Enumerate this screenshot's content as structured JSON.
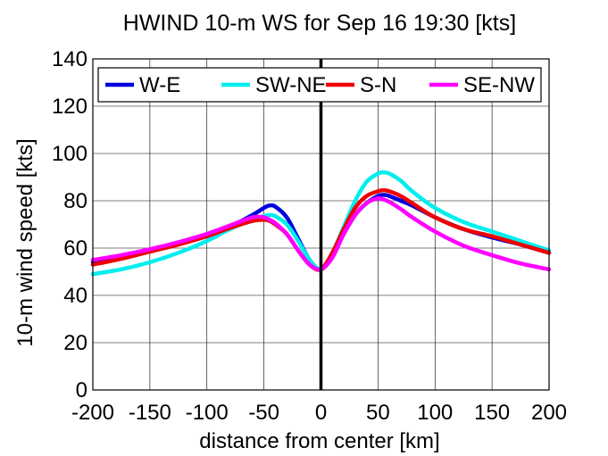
{
  "chart_data": {
    "type": "line",
    "title": "HWIND 10-m WS for Sep 16 19:30 [kts]",
    "xlabel": "distance from center [km]",
    "ylabel": "10-m wind speed [kts]",
    "xlim": [
      -200,
      200
    ],
    "ylim": [
      0,
      140
    ],
    "xticks": [
      -200,
      -150,
      -100,
      -50,
      0,
      50,
      100,
      150,
      200
    ],
    "yticks": [
      0,
      20,
      40,
      60,
      80,
      100,
      120,
      140
    ],
    "grid": true,
    "legend_position": "top",
    "center_line_x": 0,
    "series": [
      {
        "name": "W-E",
        "color": "#0000dd",
        "x": [
          -200,
          -175,
          -150,
          -125,
          -100,
          -80,
          -60,
          -50,
          -45,
          -40,
          -30,
          -20,
          -10,
          0,
          10,
          20,
          30,
          40,
          50,
          55,
          60,
          70,
          80,
          100,
          125,
          150,
          175,
          200
        ],
        "y": [
          54,
          56,
          59,
          62,
          65,
          69,
          74,
          77,
          78,
          77.5,
          73,
          64,
          55,
          51,
          57,
          66,
          74,
          79,
          82,
          82.5,
          82,
          80,
          78,
          73,
          68,
          64.5,
          61.5,
          58
        ]
      },
      {
        "name": "SW-NE",
        "color": "#00eeee",
        "x": [
          -200,
          -175,
          -150,
          -125,
          -100,
          -80,
          -60,
          -50,
          -45,
          -40,
          -30,
          -20,
          -10,
          0,
          10,
          20,
          30,
          40,
          50,
          55,
          60,
          70,
          80,
          100,
          125,
          150,
          175,
          200
        ],
        "y": [
          49,
          51,
          54,
          58,
          63,
          68,
          72,
          73.5,
          74,
          73.5,
          70,
          63,
          55,
          51,
          58,
          69,
          80,
          88,
          91.5,
          92,
          91.5,
          88.5,
          84,
          77,
          71,
          67,
          63,
          59
        ]
      },
      {
        "name": "S-N",
        "color": "#ee0000",
        "x": [
          -200,
          -175,
          -150,
          -125,
          -100,
          -80,
          -60,
          -50,
          -45,
          -40,
          -30,
          -20,
          -10,
          0,
          10,
          20,
          30,
          40,
          50,
          55,
          60,
          70,
          80,
          100,
          125,
          150,
          175,
          200
        ],
        "y": [
          53,
          55.5,
          58.5,
          61.5,
          65,
          68.5,
          71.5,
          72,
          71.5,
          70,
          66,
          59,
          53,
          51,
          58,
          68,
          77,
          82,
          84,
          84.5,
          84,
          82,
          79,
          73,
          68,
          65,
          61.5,
          58
        ]
      },
      {
        "name": "SE-NW",
        "color": "#ff00ff",
        "x": [
          -200,
          -175,
          -150,
          -125,
          -100,
          -80,
          -60,
          -50,
          -45,
          -40,
          -30,
          -20,
          -10,
          0,
          10,
          20,
          30,
          40,
          50,
          55,
          60,
          70,
          80,
          100,
          125,
          150,
          175,
          200
        ],
        "y": [
          55,
          57,
          59.5,
          62.5,
          66,
          69.5,
          73,
          73,
          72,
          70.5,
          66,
          59,
          53,
          51,
          56,
          66,
          74,
          79,
          81,
          80.5,
          79.5,
          76.5,
          73,
          67,
          61,
          57,
          53.5,
          51
        ]
      }
    ]
  }
}
